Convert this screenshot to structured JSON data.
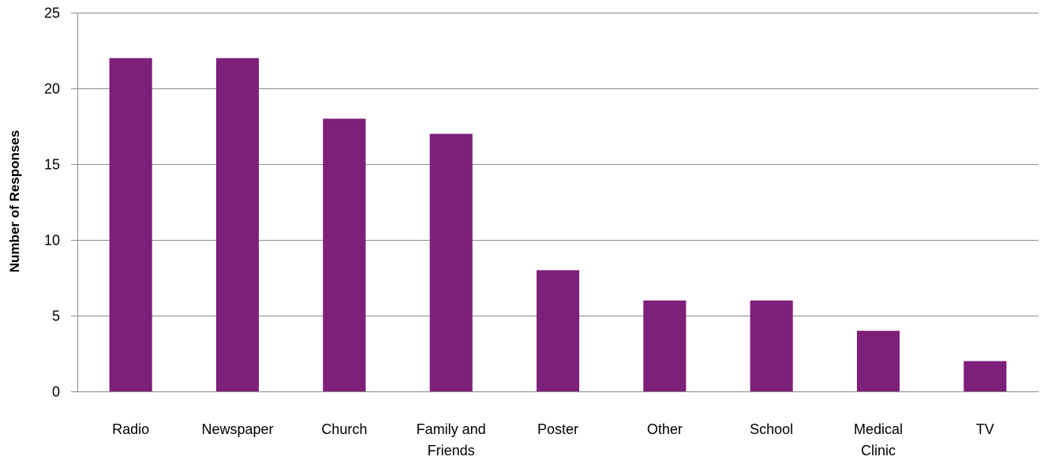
{
  "chart_data": {
    "type": "bar",
    "title": "",
    "xlabel": "",
    "ylabel": "Number of Responses",
    "categories": [
      "Radio",
      "Newspaper",
      "Church",
      "Family and Friends",
      "Poster",
      "Other",
      "School",
      "Medical Clinic",
      "TV"
    ],
    "category_lines": [
      [
        "Radio"
      ],
      [
        "Newspaper"
      ],
      [
        "Church"
      ],
      [
        "Family and",
        "Friends"
      ],
      [
        "Poster"
      ],
      [
        "Other"
      ],
      [
        "School"
      ],
      [
        "Medical",
        "Clinic"
      ],
      [
        "TV"
      ]
    ],
    "values": [
      22,
      22,
      18,
      17,
      8,
      6,
      6,
      4,
      2
    ],
    "ylim": [
      0,
      25
    ],
    "yticks": [
      0,
      5,
      10,
      15,
      20,
      25
    ],
    "grid": true,
    "legend": "none",
    "colors": {
      "bar": "#7E1F7A",
      "grid": "#8C8C8C",
      "axis": "#8C8C8C",
      "text": "#000000"
    }
  }
}
